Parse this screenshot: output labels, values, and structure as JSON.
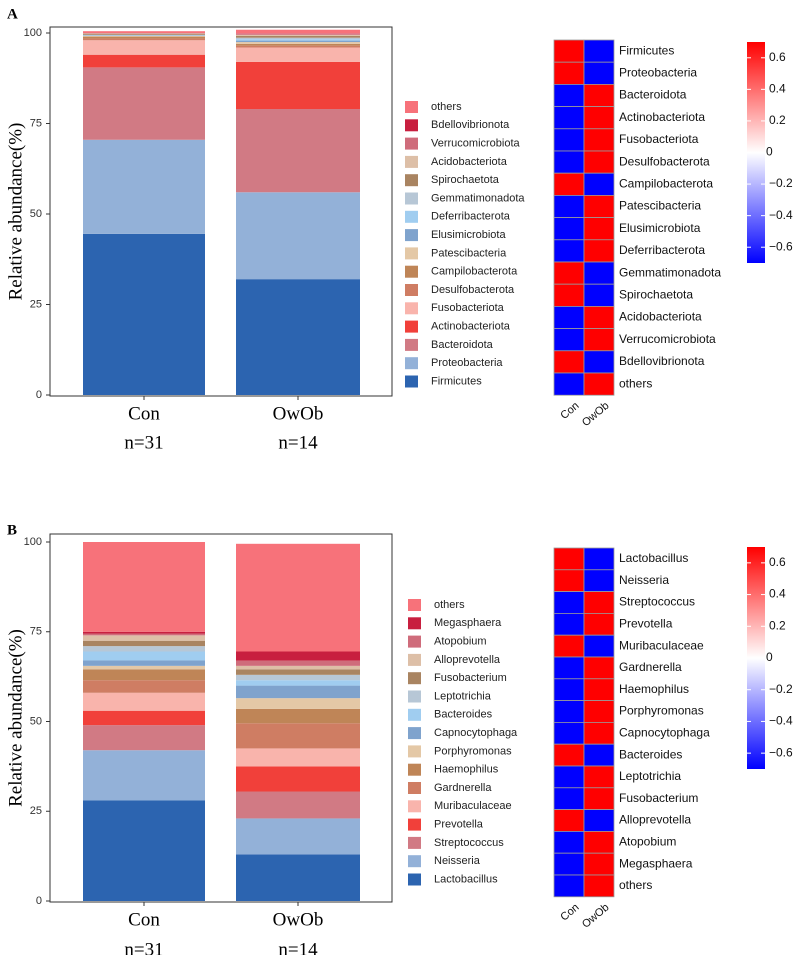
{
  "chart_data": [
    {
      "type": "bar",
      "panel_label": "A",
      "stacked": true,
      "ylabel": "Relative abundance(%)",
      "ylim": [
        0,
        100
      ],
      "yticks": [
        0,
        25,
        50,
        75,
        100
      ],
      "categories": [
        "Con",
        "OwOb"
      ],
      "category_n": [
        "n=31",
        "n=14"
      ],
      "series": [
        {
          "name": "Firmicutes",
          "color": "#2c64b0",
          "values": [
            44.5,
            32
          ]
        },
        {
          "name": "Proteobacteria",
          "color": "#93b1d8",
          "values": [
            26,
            24
          ]
        },
        {
          "name": "Bacteroidota",
          "color": "#d17a84",
          "values": [
            20,
            23
          ]
        },
        {
          "name": "Actinobacteriota",
          "color": "#f1403a",
          "values": [
            3.5,
            13
          ]
        },
        {
          "name": "Fusobacteriota",
          "color": "#f9b4ac",
          "values": [
            4,
            4
          ]
        },
        {
          "name": "Desulfobacterota",
          "color": "#cf7d63",
          "values": [
            0.5,
            0.5
          ]
        },
        {
          "name": "Campilobacterota",
          "color": "#bf8557",
          "values": [
            0.5,
            0.5
          ]
        },
        {
          "name": "Patescibacteria",
          "color": "#e4c8a6",
          "values": [
            0.2,
            0.5
          ]
        },
        {
          "name": "Elusimicrobiota",
          "color": "#7fa3cd",
          "values": [
            0.1,
            0.4
          ]
        },
        {
          "name": "Deferribacterota",
          "color": "#a0cdf0",
          "values": [
            0.1,
            0.4
          ]
        },
        {
          "name": "Gemmatimonadota",
          "color": "#b7c7d6",
          "values": [
            0.1,
            0.4
          ]
        },
        {
          "name": "Spirochaetota",
          "color": "#a98461",
          "values": [
            0.3,
            0.5
          ]
        },
        {
          "name": "Acidobacteriota",
          "color": "#ddbfa7",
          "values": [
            0.1,
            0.3
          ]
        },
        {
          "name": "Verrucomicrobiota",
          "color": "#cf6c7b",
          "values": [
            0.1,
            0.3
          ]
        },
        {
          "name": "Bdellovibrionota",
          "color": "#c81f3f",
          "values": [
            0,
            0.1
          ]
        },
        {
          "name": "others",
          "color": "#f7727a",
          "values": [
            0.5,
            1
          ]
        }
      ],
      "legend_order": [
        "others",
        "Bdellovibrionota",
        "Verrucomicrobiota",
        "Acidobacteriota",
        "Spirochaetota",
        "Gemmatimonadota",
        "Deferribacterota",
        "Elusimicrobiota",
        "Patescibacteria",
        "Campilobacterota",
        "Desulfobacterota",
        "Fusobacteriota",
        "Actinobacteriota",
        "Bacteroidota",
        "Proteobacteria",
        "Firmicutes"
      ],
      "legend_labels": [
        "others",
        "Bdellovibrionota",
        "Verrucomicrobiota",
        "Acidobacteriota",
        "Spirochaetota",
        "Gemmatimonadota",
        "Deferribacterota",
        "Elusimicrobiota",
        "Patescibacteria",
        "Campilobacterota",
        "Desulfobacterota",
        "Fusobacteriota",
        "Actinobacteriota",
        "Bacteroidota",
        "Proteobacteria",
        "Firmicutes"
      ],
      "heatmap": {
        "type": "heatmap",
        "columns": [
          "Con",
          "OwOb"
        ],
        "rows": [
          "Firmicutes",
          "Proteobacteria",
          "Bacteroidota",
          "Actinobacteriota",
          "Fusobacteriota",
          "Desulfobacterota",
          "Campilobacterota",
          "Patescibacteria",
          "Elusimicrobiota",
          "Deferribacterota",
          "Gemmatimonadota",
          "Spirochaetota",
          "Acidobacteriota",
          "Verrucomicrobiota",
          "Bdellovibrionota",
          "others"
        ],
        "values": [
          [
            0.7,
            -0.7
          ],
          [
            0.7,
            -0.7
          ],
          [
            -0.7,
            0.7
          ],
          [
            -0.7,
            0.7
          ],
          [
            -0.7,
            0.7
          ],
          [
            -0.7,
            0.7
          ],
          [
            0.7,
            -0.7
          ],
          [
            -0.7,
            0.7
          ],
          [
            -0.7,
            0.7
          ],
          [
            -0.7,
            0.7
          ],
          [
            0.7,
            -0.7
          ],
          [
            0.7,
            -0.7
          ],
          [
            -0.7,
            0.7
          ],
          [
            -0.7,
            0.7
          ],
          [
            0.7,
            -0.7
          ],
          [
            -0.7,
            0.7
          ]
        ],
        "colorbar_ticks": [
          0.6,
          0.4,
          0.2,
          0,
          -0.2,
          -0.4,
          -0.6
        ],
        "colorbar_labels": [
          "0.6",
          "0.4",
          "0.2",
          "0",
          "−0.2",
          "−0.4",
          "−0.6"
        ],
        "vmin": -0.7,
        "vmax": 0.7,
        "low_color": "#0000ff",
        "mid_color": "#ffffff",
        "high_color": "#ff0000"
      }
    },
    {
      "type": "bar",
      "panel_label": "B",
      "stacked": true,
      "ylabel": "Relative abundance(%)",
      "ylim": [
        0,
        100
      ],
      "yticks": [
        0,
        25,
        50,
        75,
        100
      ],
      "categories": [
        "Con",
        "OwOb"
      ],
      "category_n": [
        "n=31",
        "n=14"
      ],
      "series": [
        {
          "name": "Lactobacillus",
          "color": "#2c64b0",
          "values": [
            28,
            13
          ]
        },
        {
          "name": "Neisseria",
          "color": "#93b1d8",
          "values": [
            14,
            10
          ]
        },
        {
          "name": "Streptococcus",
          "color": "#d17a84",
          "values": [
            7,
            7.5
          ]
        },
        {
          "name": "Prevotella",
          "color": "#f1403a",
          "values": [
            4,
            7
          ]
        },
        {
          "name": "Muribaculaceae",
          "color": "#f9b4ac",
          "values": [
            5,
            5
          ]
        },
        {
          "name": "Gardnerella",
          "color": "#cf7d63",
          "values": [
            3.5,
            7
          ]
        },
        {
          "name": "Haemophilus",
          "color": "#bf8557",
          "values": [
            3,
            4
          ]
        },
        {
          "name": "Porphyromonas",
          "color": "#e4c8a6",
          "values": [
            1,
            3
          ]
        },
        {
          "name": "Capnocytophaga",
          "color": "#7fa3cd",
          "values": [
            1.5,
            3.5
          ]
        },
        {
          "name": "Bacteroides",
          "color": "#a0cdf0",
          "values": [
            2.5,
            1.5
          ]
        },
        {
          "name": "Leptotrichia",
          "color": "#b7c7d6",
          "values": [
            1.5,
            1.5
          ]
        },
        {
          "name": "Fusobacterium",
          "color": "#a98461",
          "values": [
            1.5,
            1.5
          ]
        },
        {
          "name": "Alloprevotella",
          "color": "#ddbfa7",
          "values": [
            1.5,
            1
          ]
        },
        {
          "name": "Atopobium",
          "color": "#cf6c7b",
          "values": [
            0.5,
            1.5
          ]
        },
        {
          "name": "Megasphaera",
          "color": "#c81f3f",
          "values": [
            0.5,
            2.5
          ]
        },
        {
          "name": "others",
          "color": "#f7727a",
          "values": [
            25,
            30
          ]
        }
      ],
      "legend_order": [
        "others",
        "Megasphaera",
        "Atopobium",
        "Alloprevotella",
        "Fusobacterium",
        "Leptotrichia",
        "Bacteroides",
        "Capnocytophaga",
        "Porphyromonas",
        "Haemophilus",
        "Gardnerella",
        "Muribaculaceae",
        "Prevotella",
        "Streptococcus",
        "Neisseria",
        "Lactobacillus"
      ],
      "legend_labels": [
        "others",
        "Megasphaera",
        "Atopobium",
        "Alloprevotella",
        "Fusobacterium",
        "Leptotrichia",
        "Bacteroides",
        "Capnocytophaga",
        "Porphyromonas",
        "Haemophilus",
        "Gardnerella",
        "Muribaculaceae",
        "Prevotella",
        "Streptococcus",
        "Neisseria",
        "Lactobacillus"
      ],
      "heatmap": {
        "type": "heatmap",
        "columns": [
          "Con",
          "OwOb"
        ],
        "rows": [
          "Lactobacillus",
          "Neisseria",
          "Streptococcus",
          "Prevotella",
          "Muribaculaceae",
          "Gardnerella",
          "Haemophilus",
          "Porphyromonas",
          "Capnocytophaga",
          "Bacteroides",
          "Leptotrichia",
          "Fusobacterium",
          "Alloprevotella",
          "Atopobium",
          "Megasphaera",
          "others"
        ],
        "values": [
          [
            0.7,
            -0.7
          ],
          [
            0.7,
            -0.7
          ],
          [
            -0.7,
            0.7
          ],
          [
            -0.7,
            0.7
          ],
          [
            0.7,
            -0.7
          ],
          [
            -0.7,
            0.7
          ],
          [
            -0.7,
            0.7
          ],
          [
            -0.7,
            0.7
          ],
          [
            -0.7,
            0.7
          ],
          [
            0.7,
            -0.7
          ],
          [
            -0.7,
            0.7
          ],
          [
            -0.7,
            0.7
          ],
          [
            0.7,
            -0.7
          ],
          [
            -0.7,
            0.7
          ],
          [
            -0.7,
            0.7
          ],
          [
            -0.7,
            0.7
          ]
        ],
        "colorbar_ticks": [
          0.6,
          0.4,
          0.2,
          0,
          -0.2,
          -0.4,
          -0.6
        ],
        "colorbar_labels": [
          "0.6",
          "0.4",
          "0.2",
          "0",
          "−0.2",
          "−0.4",
          "−0.6"
        ],
        "vmin": -0.7,
        "vmax": 0.7,
        "low_color": "#0000ff",
        "mid_color": "#ffffff",
        "high_color": "#ff0000"
      }
    }
  ]
}
